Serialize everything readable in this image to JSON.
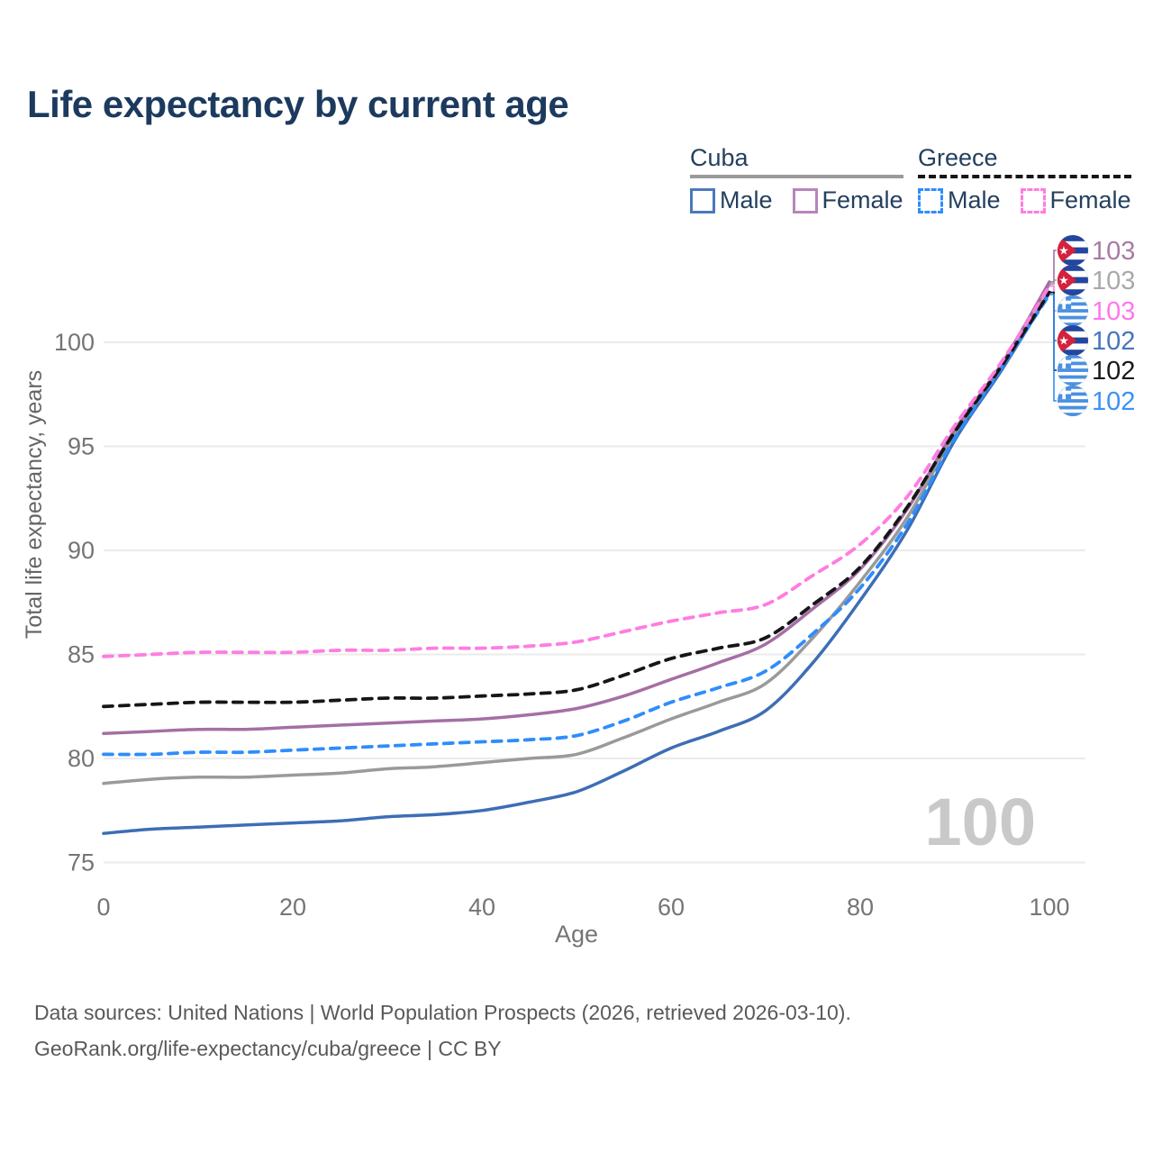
{
  "title": "Life expectancy by current age",
  "age_ticker": "100",
  "legend": {
    "groups": [
      {
        "country": "Cuba",
        "line_style": "solid",
        "underline_color": "#9a9a9a",
        "items": [
          {
            "label": "Male",
            "color": "#4a79bd"
          },
          {
            "label": "Female",
            "color": "#b885ba"
          }
        ]
      },
      {
        "country": "Greece",
        "line_style": "dashed",
        "underline_color": "#161616",
        "items": [
          {
            "label": "Male",
            "color": "#2f8dfc"
          },
          {
            "label": "Female",
            "color": "#ff7ce1"
          }
        ]
      }
    ]
  },
  "chart_data": {
    "type": "line",
    "title": "Life expectancy by current age",
    "xlabel": "Age",
    "ylabel": "Total life expectancy, years",
    "x_ticks": [
      0,
      20,
      40,
      60,
      80,
      100
    ],
    "y_ticks": [
      75,
      80,
      85,
      90,
      95,
      100
    ],
    "xlim": [
      0,
      100
    ],
    "ylim": [
      74,
      104
    ],
    "grid": "horizontal",
    "legend_position": "top-right",
    "x": [
      0,
      5,
      10,
      15,
      20,
      25,
      30,
      35,
      40,
      45,
      50,
      55,
      60,
      65,
      70,
      75,
      80,
      85,
      90,
      95,
      100
    ],
    "series": [
      {
        "name": "Cuba Male",
        "country": "Cuba",
        "sex": "Male",
        "dash": "solid",
        "color": "#3d6eb5",
        "end_label": "102",
        "values": [
          76.4,
          76.6,
          76.7,
          76.8,
          76.9,
          77.0,
          77.2,
          77.3,
          77.5,
          77.9,
          78.4,
          79.4,
          80.5,
          81.3,
          82.3,
          84.6,
          87.6,
          91.0,
          95.3,
          98.7,
          102.4
        ]
      },
      {
        "name": "Cuba",
        "country": "Cuba",
        "sex": "Both",
        "dash": "solid",
        "color": "#9a9a9a",
        "end_label": "103",
        "values": [
          78.8,
          79.0,
          79.1,
          79.1,
          79.2,
          79.3,
          79.5,
          79.6,
          79.8,
          80.0,
          80.2,
          81.0,
          81.9,
          82.7,
          83.6,
          85.8,
          88.5,
          91.6,
          95.6,
          98.9,
          102.8
        ]
      },
      {
        "name": "Cuba Female",
        "country": "Cuba",
        "sex": "Female",
        "dash": "solid",
        "color": "#a46fa4",
        "end_label": "103",
        "values": [
          81.2,
          81.3,
          81.4,
          81.4,
          81.5,
          81.6,
          81.7,
          81.8,
          81.9,
          82.1,
          82.4,
          83.0,
          83.8,
          84.6,
          85.5,
          87.2,
          89.1,
          92.0,
          95.8,
          99.0,
          102.9
        ]
      },
      {
        "name": "Greece Male",
        "country": "Greece",
        "sex": "Male",
        "dash": "dashed",
        "color": "#2f8dfc",
        "end_label": "102",
        "values": [
          80.2,
          80.2,
          80.3,
          80.3,
          80.4,
          80.5,
          80.6,
          80.7,
          80.8,
          80.9,
          81.1,
          81.8,
          82.7,
          83.4,
          84.2,
          86.0,
          88.2,
          91.3,
          95.4,
          98.8,
          102.3
        ]
      },
      {
        "name": "Greece",
        "country": "Greece",
        "sex": "Both",
        "dash": "dashed",
        "color": "#161616",
        "end_label": "102",
        "values": [
          82.5,
          82.6,
          82.7,
          82.7,
          82.7,
          82.8,
          82.9,
          82.9,
          83.0,
          83.1,
          83.3,
          84.0,
          84.8,
          85.3,
          85.8,
          87.4,
          89.2,
          92.1,
          95.7,
          98.9,
          102.4
        ]
      },
      {
        "name": "Greece Female",
        "country": "Greece",
        "sex": "Female",
        "dash": "dashed",
        "color": "#ff7ce1",
        "end_label": "103",
        "values": [
          84.9,
          85.0,
          85.1,
          85.1,
          85.1,
          85.2,
          85.2,
          85.3,
          85.3,
          85.4,
          85.6,
          86.1,
          86.6,
          87.0,
          87.4,
          88.8,
          90.3,
          92.6,
          96.0,
          99.1,
          102.7
        ]
      }
    ],
    "end_labels": [
      {
        "series": "Cuba Female",
        "flag": "cuba",
        "value": "103",
        "color": "#a97aa5"
      },
      {
        "series": "Cuba",
        "flag": "cuba",
        "value": "103",
        "color": "#a9a9a9"
      },
      {
        "series": "Greece Female",
        "flag": "greece",
        "value": "103",
        "color": "#ff78e8"
      },
      {
        "series": "Cuba Male",
        "flag": "cuba",
        "value": "102",
        "color": "#4576bd"
      },
      {
        "series": "Greece",
        "flag": "greece",
        "value": "102",
        "color": "#1a1a1a"
      },
      {
        "series": "Greece Male",
        "flag": "greece",
        "value": "102",
        "color": "#3b92f5"
      }
    ]
  },
  "icons": {
    "cuba_flag": {
      "stripe_blue": "#23469e",
      "triangle_red": "#d6203c",
      "star": "#ffffff"
    },
    "greece_flag": {
      "stripe_blue": "#4a90e2",
      "cross": "#ffffff"
    }
  },
  "colors": {
    "title": "#1c3a5e",
    "axis_text": "#757575",
    "gridline": "#ebebeb",
    "watermark": "#c9c9c9",
    "source_text": "#595959"
  },
  "source": {
    "line1": "Data sources: United Nations | World Population Prospects (2026, retrieved 2026-03-10).",
    "line2": "GeoRank.org/life-expectancy/cuba/greece | CC BY"
  }
}
